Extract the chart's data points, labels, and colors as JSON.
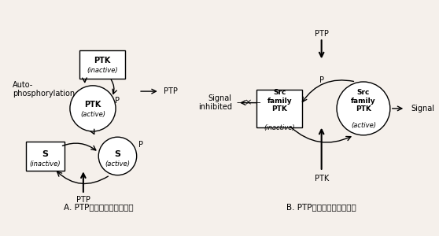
{
  "bg_color": "#f5f0eb",
  "title_A": "A. PTP对信号的负调控作用",
  "title_B": "B. PTP对信号的正调控作用",
  "label_inactive": "(inactive)",
  "label_active": "(active)",
  "label_PTK": "PTK",
  "label_PTP": "PTP",
  "label_P": "P",
  "label_S": "S",
  "label_Signal": "Signal",
  "label_Signal_inhibited": "Signal\ninhibited",
  "label_auto": "Auto-\nphosphorylation",
  "label_Src_family_PTK": "Src\nfamily\nPTK",
  "box_color": "white",
  "line_color": "black",
  "font_size_label": 7,
  "font_size_title": 7.5
}
